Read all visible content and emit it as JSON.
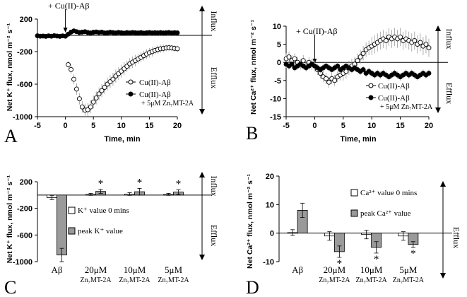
{
  "figure": {
    "panel_labels": [
      "A",
      "B",
      "C",
      "D"
    ],
    "flux_labels": {
      "influx": "Influx",
      "efflux": "Efflux"
    },
    "annotation": "+ Cu(II)-Aβ",
    "significance_mark": "*"
  },
  "chart_data": [
    {
      "panel": "A",
      "type": "scatter",
      "xlabel": "Time, min",
      "ylabel": "Net K⁺ flux, nmol m⁻² s⁻¹",
      "xlim": [
        -5,
        20
      ],
      "ylim": [
        -1000,
        200
      ],
      "x_ticks": [
        -5,
        0,
        5,
        10,
        15,
        20
      ],
      "y_ticks": [
        -1000,
        -600,
        -200,
        200
      ],
      "legend": [
        "Cu(II)-Aβ",
        "Cu(II)-Aβ",
        "+ 5μM Zn₇MT-2A"
      ],
      "series": [
        {
          "name": "Cu(II)-Aβ",
          "marker": "open-circle",
          "x": [
            0.5,
            1,
            1.5,
            2,
            2.5,
            3,
            3.5,
            4,
            4.5,
            5,
            5.5,
            6,
            6.5,
            7,
            7.5,
            8,
            8.5,
            9,
            9.5,
            10,
            10.5,
            11,
            11.5,
            12,
            12.5,
            13,
            13.5,
            14,
            14.5,
            15,
            15.5,
            16,
            16.5,
            17,
            17.5,
            18,
            18.5,
            19,
            19.5,
            20
          ],
          "y": [
            -360,
            -420,
            -540,
            -660,
            -780,
            -880,
            -920,
            -915,
            -880,
            -820,
            -770,
            -720,
            -680,
            -640,
            -600,
            -570,
            -540,
            -500,
            -470,
            -440,
            -410,
            -380,
            -350,
            -330,
            -310,
            -290,
            -270,
            -250,
            -230,
            -215,
            -200,
            -185,
            -175,
            -165,
            -160,
            -155,
            -152,
            -155,
            -160,
            -165
          ],
          "err": [
            40,
            50,
            60,
            70,
            70,
            70,
            80,
            80,
            80,
            80,
            80,
            80,
            80,
            80,
            80,
            80,
            80,
            80,
            80,
            80,
            80,
            70,
            70,
            70,
            70,
            60,
            60,
            60,
            60,
            60,
            60,
            50,
            50,
            50,
            50,
            40,
            40,
            40,
            40,
            40
          ]
        },
        {
          "name": "Cu(II)-Aβ + 5μM Zn₇MT-2A",
          "marker": "filled-circle",
          "x": [
            -5,
            -4.5,
            -4,
            -3.5,
            -3,
            -2.5,
            -2,
            -1.5,
            -1,
            -0.5,
            0,
            0.5,
            1,
            1.5,
            2,
            2.5,
            3,
            3.5,
            4,
            4.5,
            5,
            5.5,
            6,
            6.5,
            7,
            7.5,
            8,
            8.5,
            9,
            9.5,
            10,
            10.5,
            11,
            11.5,
            12,
            12.5,
            13,
            13.5,
            14,
            14.5,
            15,
            15.5,
            16,
            16.5,
            17,
            17.5,
            18,
            18.5,
            19,
            19.5,
            20
          ],
          "y": [
            -5,
            -10,
            -8,
            -12,
            -6,
            -10,
            -4,
            -8,
            -12,
            -6,
            -10,
            15,
            40,
            55,
            45,
            35,
            40,
            45,
            35,
            30,
            38,
            42,
            35,
            40,
            30,
            32,
            38,
            34,
            30,
            36,
            32,
            28,
            34,
            30,
            35,
            32,
            30,
            34,
            28,
            32,
            35,
            30,
            33,
            31,
            34,
            30,
            32,
            35,
            30,
            33,
            31
          ],
          "err": [
            15,
            15,
            15,
            15,
            15,
            15,
            15,
            15,
            15,
            15,
            15,
            20,
            20,
            20,
            20,
            20,
            20,
            20,
            20,
            20,
            20,
            20,
            20,
            20,
            20,
            20,
            20,
            20,
            20,
            20,
            20,
            20,
            20,
            20,
            20,
            20,
            20,
            20,
            20,
            20,
            20,
            20,
            20,
            20,
            20,
            20,
            20,
            20,
            20,
            20,
            20
          ]
        }
      ]
    },
    {
      "panel": "B",
      "type": "scatter",
      "xlabel": "Time, min",
      "ylabel": "Net Ca²⁺ flux, nmol m⁻² s⁻¹",
      "xlim": [
        -5,
        20
      ],
      "ylim": [
        -15,
        10
      ],
      "x_ticks": [
        -5,
        0,
        5,
        10,
        15,
        20
      ],
      "y_ticks": [
        -15,
        -10,
        -5,
        0,
        5,
        10
      ],
      "legend": [
        "Cu(II)-Aβ",
        "Cu(II)-Aβ",
        "+ 5μM Zn₇MT-2A"
      ],
      "series": [
        {
          "name": "Cu(II)-Aβ",
          "marker": "open-circle",
          "x": [
            -5,
            -4.5,
            -4,
            -3.5,
            -3,
            -2.5,
            -2,
            -1.5,
            -1,
            -0.5,
            0,
            0.5,
            1,
            1.5,
            2,
            2.5,
            3,
            3.5,
            4,
            4.5,
            5,
            5.5,
            6,
            6.5,
            7,
            7.5,
            8,
            8.5,
            9,
            9.5,
            10,
            10.5,
            11,
            11.5,
            12,
            12.5,
            13,
            13.5,
            14,
            14.5,
            15,
            15.5,
            16,
            16.5,
            17,
            17.5,
            18,
            18.5,
            19,
            19.5,
            20
          ],
          "y": [
            1,
            1.5,
            0.5,
            1,
            0,
            -0.5,
            0.5,
            -1,
            0,
            -0.5,
            -1,
            -2,
            -3,
            -4,
            -4.5,
            -5.5,
            -4.5,
            -5,
            -4,
            -3.5,
            -3,
            -2.5,
            -1.5,
            -1,
            -0.5,
            0.5,
            1.5,
            2.5,
            3.5,
            4,
            4.5,
            5,
            5.5,
            6,
            6.5,
            6,
            7,
            6.5,
            7,
            6.5,
            7,
            6,
            6.5,
            6,
            5.5,
            6,
            5,
            5.5,
            4.5,
            5,
            4
          ],
          "err": [
            1.5,
            1.5,
            1.5,
            1.5,
            1.5,
            1.5,
            1.5,
            1.5,
            1.5,
            1.5,
            1.5,
            1.5,
            1.5,
            1.5,
            1.5,
            1.5,
            1.5,
            1.5,
            1.5,
            1.5,
            2,
            2,
            2,
            2,
            2,
            2,
            2,
            2,
            2,
            2,
            2.5,
            2.5,
            2.5,
            2.5,
            2.5,
            2.5,
            2.5,
            2.5,
            2.5,
            2.5,
            2.5,
            2.5,
            2.5,
            2.5,
            2.5,
            2.5,
            2.5,
            2.5,
            2.5,
            2.5,
            2.5
          ]
        },
        {
          "name": "Cu(II)-Aβ + 5μM Zn₇MT-2A",
          "marker": "filled-circle",
          "x": [
            -5,
            -4.5,
            -4,
            -3.5,
            -3,
            -2.5,
            -2,
            -1.5,
            -1,
            -0.5,
            0,
            0.5,
            1,
            1.5,
            2,
            2.5,
            3,
            3.5,
            4,
            4.5,
            5,
            5.5,
            6,
            6.5,
            7,
            7.5,
            8,
            8.5,
            9,
            9.5,
            10,
            10.5,
            11,
            11.5,
            12,
            12.5,
            13,
            13.5,
            14,
            14.5,
            15,
            15.5,
            16,
            16.5,
            17,
            17.5,
            18,
            18.5,
            19,
            19.5,
            20
          ],
          "y": [
            -0.5,
            -1,
            -0.5,
            -1.5,
            -1,
            -0.5,
            -1,
            -1.5,
            -1,
            -0.5,
            -1,
            -1.5,
            -2,
            -1.5,
            -1,
            -1.5,
            -2,
            -1.5,
            -1,
            -2,
            -1.5,
            -1,
            -1.5,
            -2,
            -1.5,
            -2,
            -2.5,
            -2,
            -3,
            -2.5,
            -3,
            -3.5,
            -3,
            -3.5,
            -3,
            -3.5,
            -4,
            -3.5,
            -3,
            -3.5,
            -4,
            -3.5,
            -3,
            -3.5,
            -3,
            -3.5,
            -4,
            -3.5,
            -3,
            -3.5,
            -3
          ],
          "err": [
            1,
            1,
            1,
            1,
            1,
            1,
            1,
            1,
            1,
            1,
            1,
            1,
            1,
            1,
            1,
            1,
            1,
            1,
            1,
            1,
            1,
            1,
            1,
            1,
            1,
            1,
            1,
            1,
            1,
            1,
            1,
            1,
            1,
            1,
            1,
            1,
            1,
            1,
            1,
            1,
            1,
            1,
            1,
            1,
            1,
            1,
            1,
            1,
            1,
            1,
            1
          ]
        }
      ]
    },
    {
      "panel": "C",
      "type": "bar",
      "ylabel": "Net K⁺ flux, nmol m⁻² s⁻¹",
      "ylim": [
        -1000,
        200
      ],
      "y_ticks": [
        -1000,
        -600,
        -200,
        200
      ],
      "categories": [
        {
          "main": "Aβ",
          "sub": ""
        },
        {
          "main": "20μM",
          "sub": "Zn₇MT-2A"
        },
        {
          "main": "10μM",
          "sub": "Zn₇MT-2A"
        },
        {
          "main": "5μM",
          "sub": "Zn₇MT-2A"
        }
      ],
      "legend": [
        "K⁺ value 0 mins",
        "peak K⁺ value"
      ],
      "series": [
        {
          "name": "K⁺ value 0 mins",
          "values": [
            -40,
            10,
            15,
            10
          ],
          "err": [
            30,
            15,
            20,
            15
          ]
        },
        {
          "name": "peak K⁺ value",
          "values": [
            -900,
            55,
            50,
            45
          ],
          "err": [
            100,
            30,
            50,
            35
          ]
        }
      ],
      "significant": [
        false,
        true,
        true,
        true
      ]
    },
    {
      "panel": "D",
      "type": "bar",
      "ylabel": "Net Ca²⁺ flux, nmol m⁻² s⁻¹",
      "ylim": [
        -10,
        20
      ],
      "y_ticks": [
        -10,
        0,
        10,
        20
      ],
      "categories": [
        {
          "main": "Aβ",
          "sub": ""
        },
        {
          "main": "20μM",
          "sub": "Zn₇MT-2A"
        },
        {
          "main": "10μM",
          "sub": "Zn₇MT-2A"
        },
        {
          "main": "5μM",
          "sub": "Zn₇MT-2A"
        }
      ],
      "legend": [
        "Ca²⁺ value 0 mins",
        "peak Ca²⁺ value"
      ],
      "series": [
        {
          "name": "Ca²⁺ value 0 mins",
          "values": [
            0.2,
            -1.0,
            -0.5,
            -1.0
          ],
          "err": [
            1,
            1.5,
            1.5,
            1.5
          ]
        },
        {
          "name": "peak Ca²⁺ value",
          "values": [
            8,
            -6.5,
            -5,
            -4
          ],
          "err": [
            2.5,
            2,
            2,
            1
          ]
        }
      ],
      "significant": [
        false,
        true,
        true,
        true
      ]
    }
  ]
}
